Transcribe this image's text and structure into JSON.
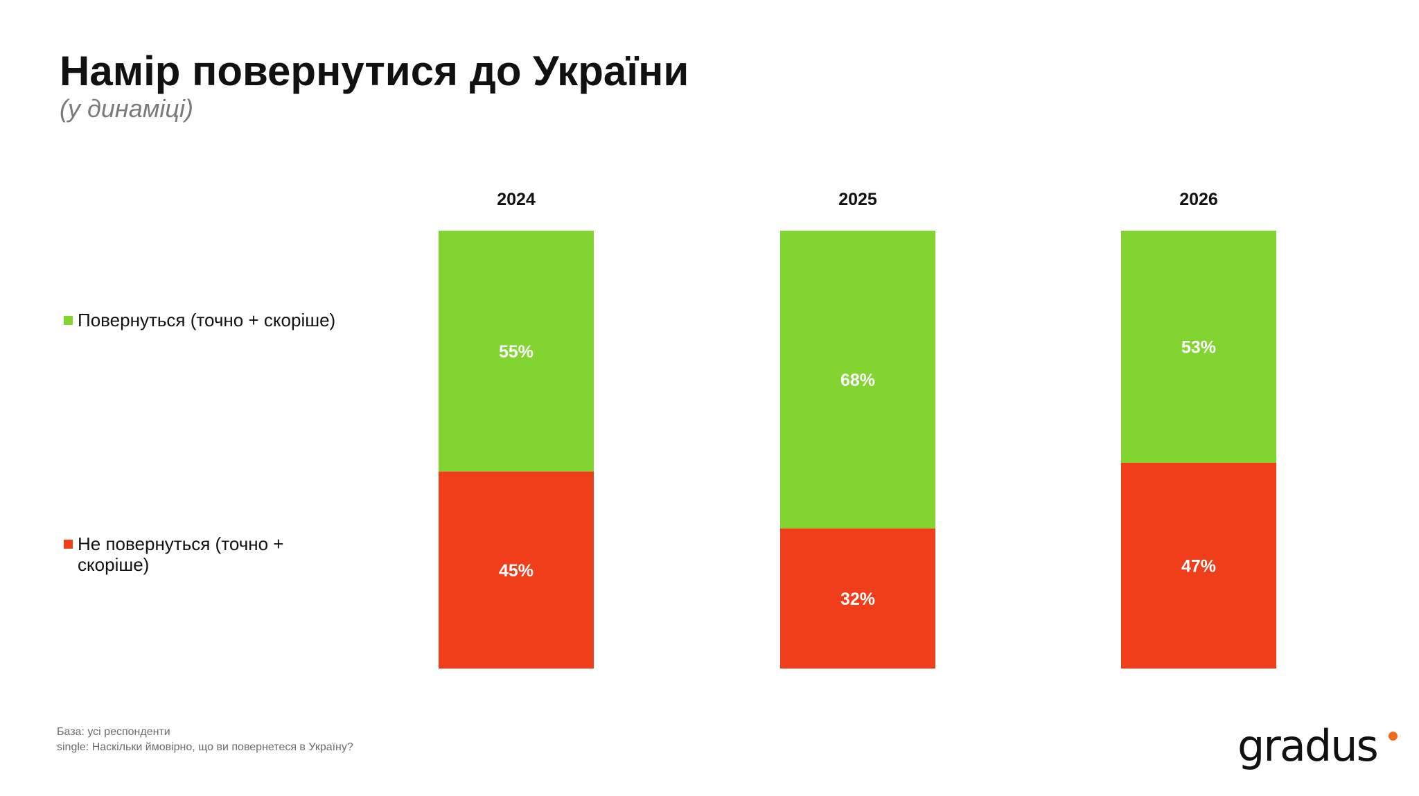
{
  "title": "Намір повернутися до України",
  "subtitle": "(у динаміці)",
  "legend": {
    "return": "Повернуться (точно + скоріше)",
    "not_return": "Не повернуться (точно + скоріше)"
  },
  "footnote": {
    "base": "База: усі респонденти",
    "question": "single: Наскільки ймовірно, що ви повернетеся в Україну?"
  },
  "logo": "gradus",
  "colors": {
    "return": "#82D431",
    "not_return": "#F03E1A",
    "logo_dot": "#F26A1B"
  },
  "chart_data": {
    "type": "bar",
    "stacked": true,
    "categories": [
      "2024",
      "2025",
      "2026"
    ],
    "series": [
      {
        "name": "Повернуться (точно + скоріше)",
        "values": [
          55,
          68,
          53
        ],
        "labels": [
          "55%",
          "68%",
          "53%"
        ]
      },
      {
        "name": "Не повернуться (точно + скоріше)",
        "values": [
          45,
          32,
          47
        ],
        "labels": [
          "45%",
          "32%",
          "47%"
        ]
      }
    ],
    "title": "Намір повернутися до України",
    "subtitle": "(у динаміці)",
    "xlabel": "",
    "ylabel": "",
    "ylim": [
      0,
      100
    ],
    "grid": false,
    "legend_position": "left"
  }
}
